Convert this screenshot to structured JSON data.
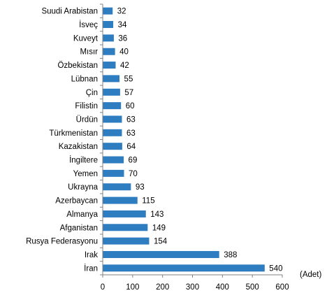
{
  "chart_data": {
    "type": "bar",
    "orientation": "horizontal",
    "categories": [
      "Suudi Arabistan",
      "İsveç",
      "Kuveyt",
      "Mısır",
      "Özbekistan",
      "Lübnan",
      "Çin",
      "Filistin",
      "Ürdün",
      "Türkmenistan",
      "Kazakistan",
      "İngiltere",
      "Yemen",
      "Ukrayna",
      "Azerbaycan",
      "Almanya",
      "Afganistan",
      "Rusya Federasyonu",
      "Irak",
      "İran"
    ],
    "values": [
      32,
      34,
      36,
      40,
      42,
      55,
      57,
      60,
      63,
      63,
      64,
      69,
      70,
      93,
      115,
      143,
      149,
      154,
      388,
      540
    ],
    "xlim": [
      0,
      600
    ],
    "xticks": [
      0,
      100,
      200,
      300,
      400,
      500,
      600
    ],
    "xunit": "(Adet)",
    "bar_color": "#2E7DC1",
    "grid": false,
    "data_labels": true
  }
}
